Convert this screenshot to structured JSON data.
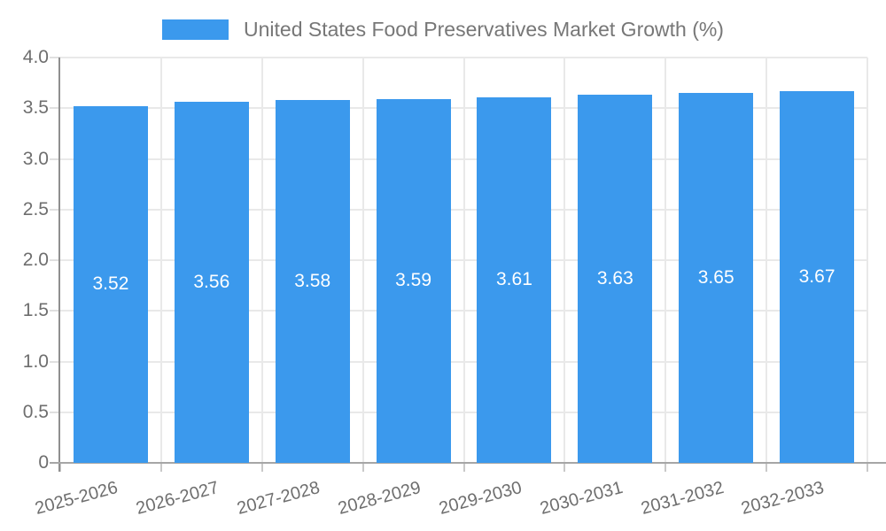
{
  "chart_data": {
    "type": "bar",
    "title": "United States Food Preservatives Market Growth (%)",
    "series_name": "United States Food Preservatives Market Growth (%)",
    "categories": [
      "2025-2026",
      "2026-2027",
      "2027-2028",
      "2028-2029",
      "2029-2030",
      "2030-2031",
      "2031-2032",
      "2032-2033"
    ],
    "values": [
      3.52,
      3.56,
      3.58,
      3.59,
      3.61,
      3.63,
      3.65,
      3.67
    ],
    "value_labels": [
      "3.52",
      "3.56",
      "3.58",
      "3.59",
      "3.61",
      "3.63",
      "3.65",
      "3.67"
    ],
    "xlabel": "",
    "ylabel": "",
    "ylim": [
      0,
      4.0
    ],
    "ytick_step": 0.5,
    "ytick_labels": [
      "0",
      "0.5",
      "1.0",
      "1.5",
      "2.0",
      "2.5",
      "3.0",
      "3.5",
      "4.0"
    ],
    "grid": true,
    "legend_position": "top",
    "colors": {
      "bar": "#3b99ed",
      "bar_label": "#ffffff",
      "axis_text": "#6e6e6e",
      "title_text": "#777777",
      "gridline": "#e9e9e9",
      "y_axis_line": "#8f8f8f",
      "x_axis_line": "#a6a6a6",
      "tick": "#c9c9c9",
      "tick_stub": "#e0e0e0",
      "background": "#ffffff"
    }
  }
}
